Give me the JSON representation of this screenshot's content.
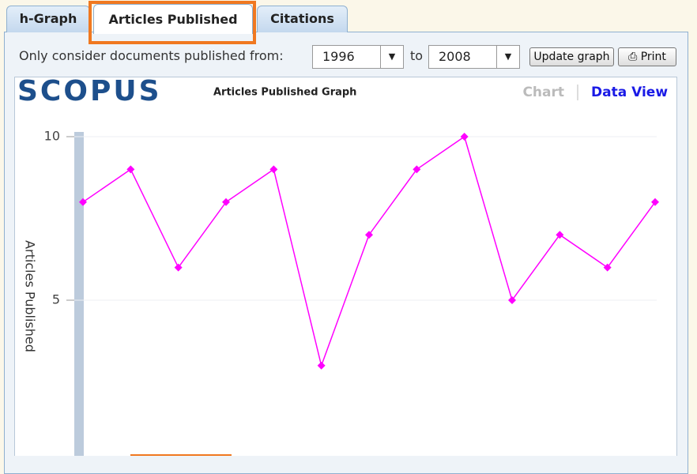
{
  "tabs": [
    "h-Graph",
    "Articles Published",
    "Citations"
  ],
  "filter": {
    "label": "Only consider documents published from:",
    "from": "1996",
    "to_label": "to",
    "to": "2008"
  },
  "buttons": [
    "Update graph",
    "Print"
  ],
  "logo": "SCOPUS",
  "chart_data": {
    "type": "line",
    "title": "Articles Published Graph",
    "views": [
      "Chart",
      "Data View"
    ],
    "ylabel": "Articles Published",
    "categories": [
      null,
      null,
      null,
      null,
      null,
      null,
      null,
      null,
      null,
      null,
      null,
      null,
      null
    ],
    "series": [
      {
        "name": "Articles Published",
        "color": "#ff00ff",
        "values": [
          8,
          9,
          6,
          8,
          9,
          3,
          7,
          9,
          10,
          5,
          7,
          6,
          8
        ]
      }
    ],
    "ylim": [
      0,
      10
    ],
    "yticks": [
      5,
      10
    ],
    "grid": true
  }
}
